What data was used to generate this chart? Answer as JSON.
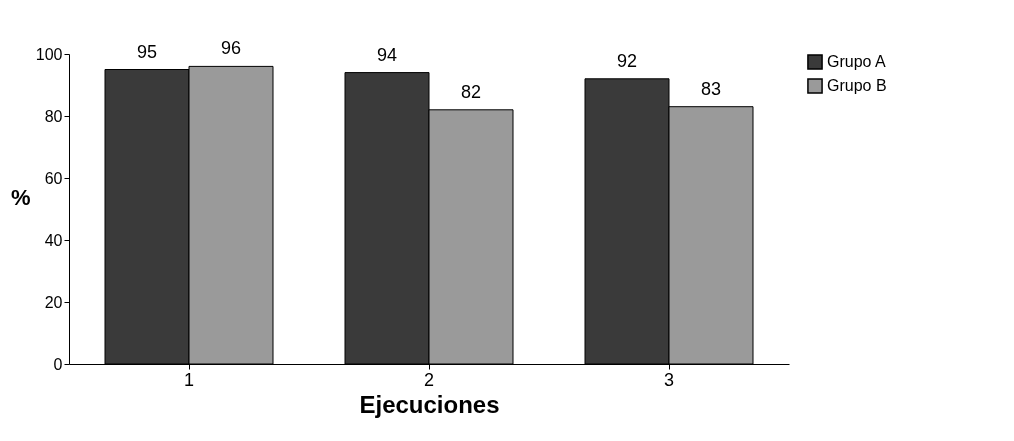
{
  "chart_data": {
    "type": "bar",
    "xlabel": "Ejecuciones",
    "ylabel": "%",
    "categories": [
      "1",
      "2",
      "3"
    ],
    "series": [
      {
        "name": "Grupo A",
        "color": "#3a3a3a",
        "values": [
          95,
          94,
          92
        ]
      },
      {
        "name": "Grupo B",
        "color": "#9a9a9a",
        "values": [
          96,
          82,
          83
        ]
      }
    ],
    "ylim": [
      0,
      100
    ],
    "yticks": [
      0,
      20,
      40,
      60,
      80,
      100
    ],
    "grid": false,
    "legend": "right",
    "data_labels": true
  }
}
